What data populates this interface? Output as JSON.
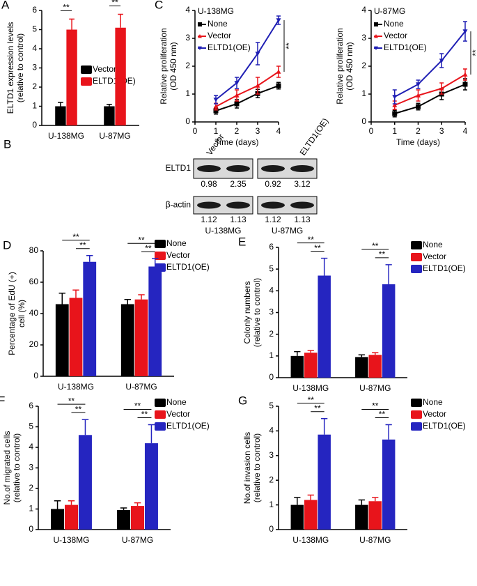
{
  "chart_data": [
    {
      "type": "bar",
      "panel": "A",
      "ylabel": [
        "ELTD1 expression levels",
        "(relative to control)"
      ],
      "categories": [
        "U-138MG",
        "U-87MG"
      ],
      "series": [
        {
          "name": "Vector",
          "color": "#000000",
          "values": [
            1.0,
            1.0
          ],
          "errors": [
            0.2,
            0.1
          ]
        },
        {
          "name": "ELTD1(OE)",
          "color": "#e8141b",
          "values": [
            5.0,
            5.1
          ],
          "errors": [
            0.55,
            0.7
          ]
        }
      ],
      "ylim": [
        0,
        6
      ],
      "yticks": [
        0,
        1,
        2,
        3,
        4,
        5,
        6
      ],
      "legend": "upper left",
      "significance": [
        "**",
        "**"
      ]
    },
    {
      "type": "line",
      "panel": "C",
      "title": "U-138MG",
      "ylabel": [
        "Relative proliferation",
        "(OD 450 nm)"
      ],
      "xlabel": "Time (days)",
      "x": [
        1,
        2,
        3,
        4
      ],
      "series": [
        {
          "name": "None",
          "color": "#000000",
          "marker": "square",
          "values": [
            0.4,
            0.65,
            1.02,
            1.3
          ],
          "errors": [
            0.12,
            0.15,
            0.15,
            0.12
          ]
        },
        {
          "name": "Vector",
          "color": "#e8141b",
          "marker": "triangle",
          "values": [
            0.55,
            0.95,
            1.3,
            1.8
          ],
          "errors": [
            0.12,
            0.2,
            0.3,
            0.2
          ]
        },
        {
          "name": "ELTD1(OE)",
          "color": "#1f1fb4",
          "marker": "triangle-down",
          "values": [
            0.8,
            1.4,
            2.45,
            3.65
          ],
          "errors": [
            0.15,
            0.2,
            0.4,
            0.15
          ]
        }
      ],
      "xlim": [
        0,
        4
      ],
      "xticks": [
        0,
        1,
        2,
        3,
        4
      ],
      "ylim": [
        0,
        4
      ],
      "yticks": [
        0,
        1,
        2,
        3,
        4
      ],
      "legend": "upper left",
      "significance": [
        "**"
      ]
    },
    {
      "type": "line",
      "title": "U-87MG",
      "ylabel": [
        "Relative proliferation",
        "(OD 450 nm)"
      ],
      "xlabel": "Time (days)",
      "x": [
        1,
        2,
        3,
        4
      ],
      "series": [
        {
          "name": "None",
          "color": "#000000",
          "marker": "square",
          "values": [
            0.3,
            0.55,
            1.0,
            1.35
          ],
          "errors": [
            0.12,
            0.12,
            0.2,
            0.2
          ]
        },
        {
          "name": "Vector",
          "color": "#e8141b",
          "marker": "triangle",
          "values": [
            0.6,
            0.95,
            1.2,
            1.7
          ],
          "errors": [
            0.15,
            0.2,
            0.2,
            0.2
          ]
        },
        {
          "name": "ELTD1(OE)",
          "color": "#1f1fb4",
          "marker": "triangle-down",
          "values": [
            0.9,
            1.35,
            2.2,
            3.25
          ],
          "errors": [
            0.25,
            0.15,
            0.25,
            0.35
          ]
        }
      ],
      "xlim": [
        0,
        4
      ],
      "xticks": [
        0,
        1,
        2,
        3,
        4
      ],
      "ylim": [
        0,
        4
      ],
      "yticks": [
        0,
        1,
        2,
        3,
        4
      ],
      "legend": "upper left",
      "significance": [
        "**"
      ]
    },
    {
      "type": "bar",
      "panel": "D",
      "ylabel": [
        "Percentage of EdU (+)",
        "cell (%)"
      ],
      "categories": [
        "U-138MG",
        "U-87MG"
      ],
      "series": [
        {
          "name": "None",
          "color": "#000000",
          "values": [
            46,
            46
          ],
          "errors": [
            7,
            3
          ]
        },
        {
          "name": "Vector",
          "color": "#e8141b",
          "values": [
            50,
            49
          ],
          "errors": [
            5,
            3
          ]
        },
        {
          "name": "ELTD1(OE)",
          "color": "#2525c0",
          "values": [
            73,
            70
          ],
          "errors": [
            4,
            5
          ]
        }
      ],
      "ylim": [
        0,
        80
      ],
      "yticks": [
        0,
        20,
        40,
        60,
        80
      ],
      "legend": "right",
      "significance": [
        "**",
        "**",
        "**",
        "**"
      ]
    },
    {
      "type": "bar",
      "panel": "E",
      "ylabel": [
        "Colonly numbers",
        "(relative to control)"
      ],
      "categories": [
        "U-138MG",
        "U-87MG"
      ],
      "series": [
        {
          "name": "None",
          "color": "#000000",
          "values": [
            1.0,
            0.95
          ],
          "errors": [
            0.2,
            0.1
          ]
        },
        {
          "name": "Vector",
          "color": "#e8141b",
          "values": [
            1.15,
            1.05
          ],
          "errors": [
            0.1,
            0.1
          ]
        },
        {
          "name": "ELTD1(OE)",
          "color": "#2525c0",
          "values": [
            4.7,
            4.3
          ],
          "errors": [
            0.8,
            0.9
          ]
        }
      ],
      "ylim": [
        0,
        6
      ],
      "yticks": [
        0,
        1,
        2,
        3,
        4,
        5,
        6
      ],
      "legend": "right",
      "significance": [
        "**",
        "**",
        "**",
        "**"
      ]
    },
    {
      "type": "bar",
      "panel": "F",
      "ylabel": [
        "No.of migrated cells",
        "(relative to control)"
      ],
      "categories": [
        "U-138MG",
        "U-87MG"
      ],
      "series": [
        {
          "name": "None",
          "color": "#000000",
          "values": [
            1.0,
            0.95
          ],
          "errors": [
            0.4,
            0.1
          ]
        },
        {
          "name": "Vector",
          "color": "#e8141b",
          "values": [
            1.2,
            1.15
          ],
          "errors": [
            0.2,
            0.15
          ]
        },
        {
          "name": "ELTD1(OE)",
          "color": "#2525c0",
          "values": [
            4.6,
            4.2
          ],
          "errors": [
            0.75,
            0.9
          ]
        }
      ],
      "ylim": [
        0,
        6
      ],
      "yticks": [
        0,
        1,
        2,
        3,
        4,
        5,
        6
      ],
      "legend": "right",
      "significance": [
        "**",
        "**",
        "**",
        "**"
      ]
    },
    {
      "type": "bar",
      "panel": "G",
      "ylabel": [
        "No.of invasion cells",
        "(relative to control)"
      ],
      "categories": [
        "U-138MG",
        "U-87MG"
      ],
      "series": [
        {
          "name": "None",
          "color": "#000000",
          "values": [
            1.0,
            1.0
          ],
          "errors": [
            0.3,
            0.2
          ]
        },
        {
          "name": "Vector",
          "color": "#e8141b",
          "values": [
            1.2,
            1.15
          ],
          "errors": [
            0.2,
            0.15
          ]
        },
        {
          "name": "ELTD1(OE)",
          "color": "#2525c0",
          "values": [
            3.85,
            3.65
          ],
          "errors": [
            0.65,
            0.6
          ]
        }
      ],
      "ylim": [
        0,
        5
      ],
      "yticks": [
        0,
        1,
        2,
        3,
        4,
        5
      ],
      "legend": "right",
      "significance": [
        "**",
        "**",
        "**",
        "**"
      ]
    }
  ],
  "blot": {
    "panel": "B",
    "lanes": [
      "Vector",
      "ELTD1(OE)"
    ],
    "groups": [
      "U-138MG",
      "U-87MG"
    ],
    "rows": [
      {
        "label": "ELTD1",
        "values": [
          0.98,
          2.35,
          0.92,
          3.12
        ]
      },
      {
        "label": "β-actin",
        "values": [
          1.12,
          1.13,
          1.12,
          1.13
        ]
      }
    ]
  }
}
